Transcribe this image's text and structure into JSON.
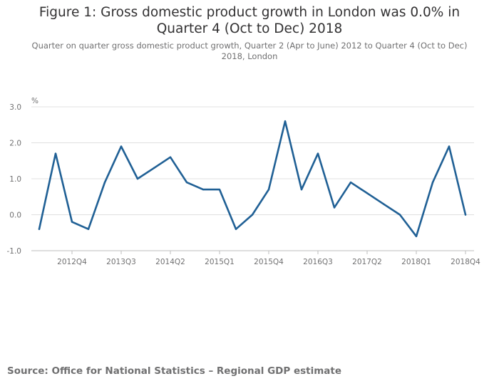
{
  "title": "Figure 1: Gross domestic product growth in London was 0.0% in Quarter 4 (Oct to Dec) 2018",
  "subtitle": "Quarter on quarter gross domestic product growth, Quarter 2 (Apr to June) 2012 to Quarter 4 (Oct to Dec) 2018, London",
  "source": "Source: Office for National Statistics – Regional GDP estimate",
  "colors": {
    "line": "#206095",
    "grid": "#e0e0e0",
    "axis": "#bebebe"
  },
  "chart_data": {
    "type": "line",
    "title": "Figure 1: Gross domestic product growth in London was 0.0% in Quarter 4 (Oct to Dec) 2018",
    "ylabel": "%",
    "xlabel": "",
    "ylim": [
      -1.0,
      3.0
    ],
    "yticks": [
      -1.0,
      0.0,
      1.0,
      2.0,
      3.0
    ],
    "ytick_labels": [
      "-1.0",
      "0.0",
      "1.0",
      "2.0",
      "3.0"
    ],
    "xtick_labels": [
      "2012Q4",
      "2013Q3",
      "2014Q2",
      "2015Q1",
      "2015Q4",
      "2016Q3",
      "2017Q2",
      "2018Q1",
      "2018Q4"
    ],
    "xtick_categories": [
      "2012Q4",
      "2013Q3",
      "2014Q2",
      "2015Q1",
      "2015Q4",
      "2016Q3",
      "2017Q2",
      "2018Q1",
      "2018Q4"
    ],
    "categories": [
      "2012Q2",
      "2012Q3",
      "2012Q4",
      "2013Q1",
      "2013Q2",
      "2013Q3",
      "2013Q4",
      "2014Q1",
      "2014Q2",
      "2014Q3",
      "2014Q4",
      "2015Q1",
      "2015Q2",
      "2015Q3",
      "2015Q4",
      "2016Q1",
      "2016Q2",
      "2016Q3",
      "2016Q4",
      "2017Q1",
      "2017Q2",
      "2017Q3",
      "2017Q4",
      "2018Q1",
      "2018Q2",
      "2018Q3",
      "2018Q4"
    ],
    "series": [
      {
        "name": "London",
        "values": [
          -0.4,
          1.7,
          -0.2,
          -0.4,
          0.9,
          1.9,
          1.0,
          1.3,
          1.6,
          0.9,
          0.7,
          0.7,
          -0.4,
          0.0,
          0.7,
          2.6,
          0.7,
          1.7,
          0.2,
          0.9,
          0.6,
          0.3,
          0.0,
          -0.6,
          0.9,
          1.9,
          0.0
        ]
      }
    ],
    "grid": true,
    "legend": "none"
  }
}
